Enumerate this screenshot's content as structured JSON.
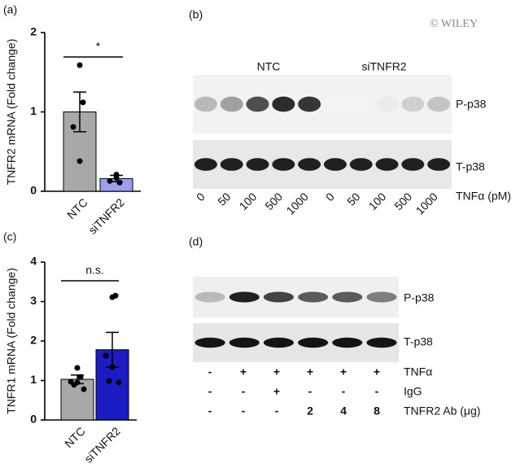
{
  "chart_data": [
    {
      "type": "bar",
      "panel": "(a)",
      "ylabel": "TNFR2 mRNA (Fold change)",
      "categories": [
        "NTC",
        "siTNFR2"
      ],
      "values": [
        1.0,
        0.16
      ],
      "errors": [
        0.25,
        0.04
      ],
      "points": [
        [
          1.59,
          1.12,
          0.81,
          0.38
        ],
        [
          0.21,
          0.11,
          0.13,
          0.17
        ]
      ],
      "colors": [
        "#a8a8a8",
        "#9b9ef2"
      ],
      "ylim": [
        0,
        2
      ],
      "yticks": [
        0,
        1,
        2
      ],
      "annotation": "*"
    },
    {
      "type": "bar",
      "panel": "(c)",
      "ylabel": "TNFR1 mRNA (Fold change)",
      "categories": [
        "NTC",
        "siTNFR2"
      ],
      "values": [
        1.03,
        1.78
      ],
      "errors": [
        0.11,
        0.44
      ],
      "points": [
        [
          1.32,
          1.09,
          0.97,
          0.95,
          0.89,
          0.78
        ],
        [
          3.11,
          3.15,
          1.63,
          1.34,
          0.99,
          0.95
        ]
      ],
      "colors": [
        "#a8a8a8",
        "#1c1cc4"
      ],
      "ylim": [
        0,
        4
      ],
      "yticks": [
        0,
        1,
        2,
        3,
        4
      ],
      "annotation": "n.s."
    }
  ],
  "blot_b": {
    "panel": "(b)",
    "watermark": "© WILEY",
    "groups": [
      "NTC",
      "siTNFR2"
    ],
    "rows": [
      "P-p38",
      "T-p38"
    ],
    "lanes": [
      "0",
      "50",
      "100",
      "500",
      "1000",
      "0",
      "50",
      "100",
      "500",
      "1000"
    ],
    "lane_title": "TNFα (pM)"
  },
  "blot_d": {
    "panel": "(d)",
    "rows": [
      "P-p38",
      "T-p38"
    ],
    "conditions": [
      {
        "label": "TNFα",
        "marks": [
          "-",
          "+",
          "+",
          "+",
          "+",
          "+"
        ]
      },
      {
        "label": "IgG",
        "marks": [
          "-",
          "-",
          "+",
          "-",
          "-",
          "-"
        ]
      },
      {
        "label": "TNFR2 Ab (μg)",
        "marks": [
          "-",
          "-",
          "-",
          "2",
          "4",
          "8"
        ]
      }
    ]
  }
}
